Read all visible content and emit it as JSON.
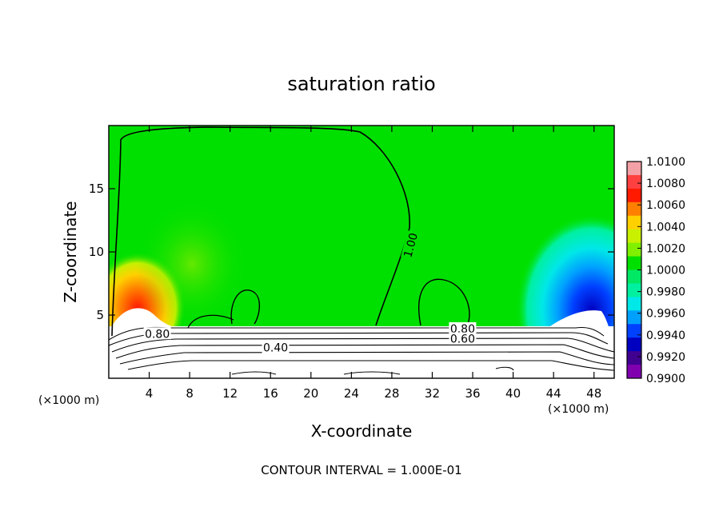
{
  "chart_data": {
    "type": "heatmap",
    "title": "saturation ratio",
    "xlabel": "X-coordinate",
    "ylabel": "Z-coordinate",
    "x_unit": "(×1000 m)",
    "xlim": [
      0,
      50
    ],
    "ylim": [
      0,
      20
    ],
    "x_ticks": [
      "4",
      "8",
      "12",
      "16",
      "20",
      "24",
      "28",
      "32",
      "36",
      "40",
      "44",
      "48"
    ],
    "y_ticks": [
      "5",
      "10",
      "15"
    ],
    "colorbar": {
      "labels": [
        "1.0100",
        "1.0080",
        "1.0060",
        "1.0040",
        "1.0020",
        "1.0000",
        "0.9980",
        "0.9960",
        "0.9940",
        "0.9920",
        "0.9900"
      ],
      "colors": [
        "#f3a0a6",
        "#ff4040",
        "#ff1a00",
        "#ff8000",
        "#ffd000",
        "#c8f000",
        "#80f000",
        "#00e000",
        "#00e864",
        "#00f0a0",
        "#00e8e8",
        "#00a0ff",
        "#0040ff",
        "#0000c0",
        "#400090",
        "#8000b0"
      ]
    },
    "contour_labels": [
      {
        "text": "1.00",
        "x": 30,
        "z": 10.5
      },
      {
        "text": "0.40",
        "x": 16.5,
        "z": 2.3
      },
      {
        "text": "0.80",
        "x": 35,
        "z": 3.8
      },
      {
        "text": "0.60",
        "x": 35,
        "z": 3.0
      },
      {
        "text": "0.80",
        "x": 4.8,
        "z": 3.4
      }
    ],
    "contour_interval": "CONTOUR INTERVAL = 1.000E-01"
  }
}
